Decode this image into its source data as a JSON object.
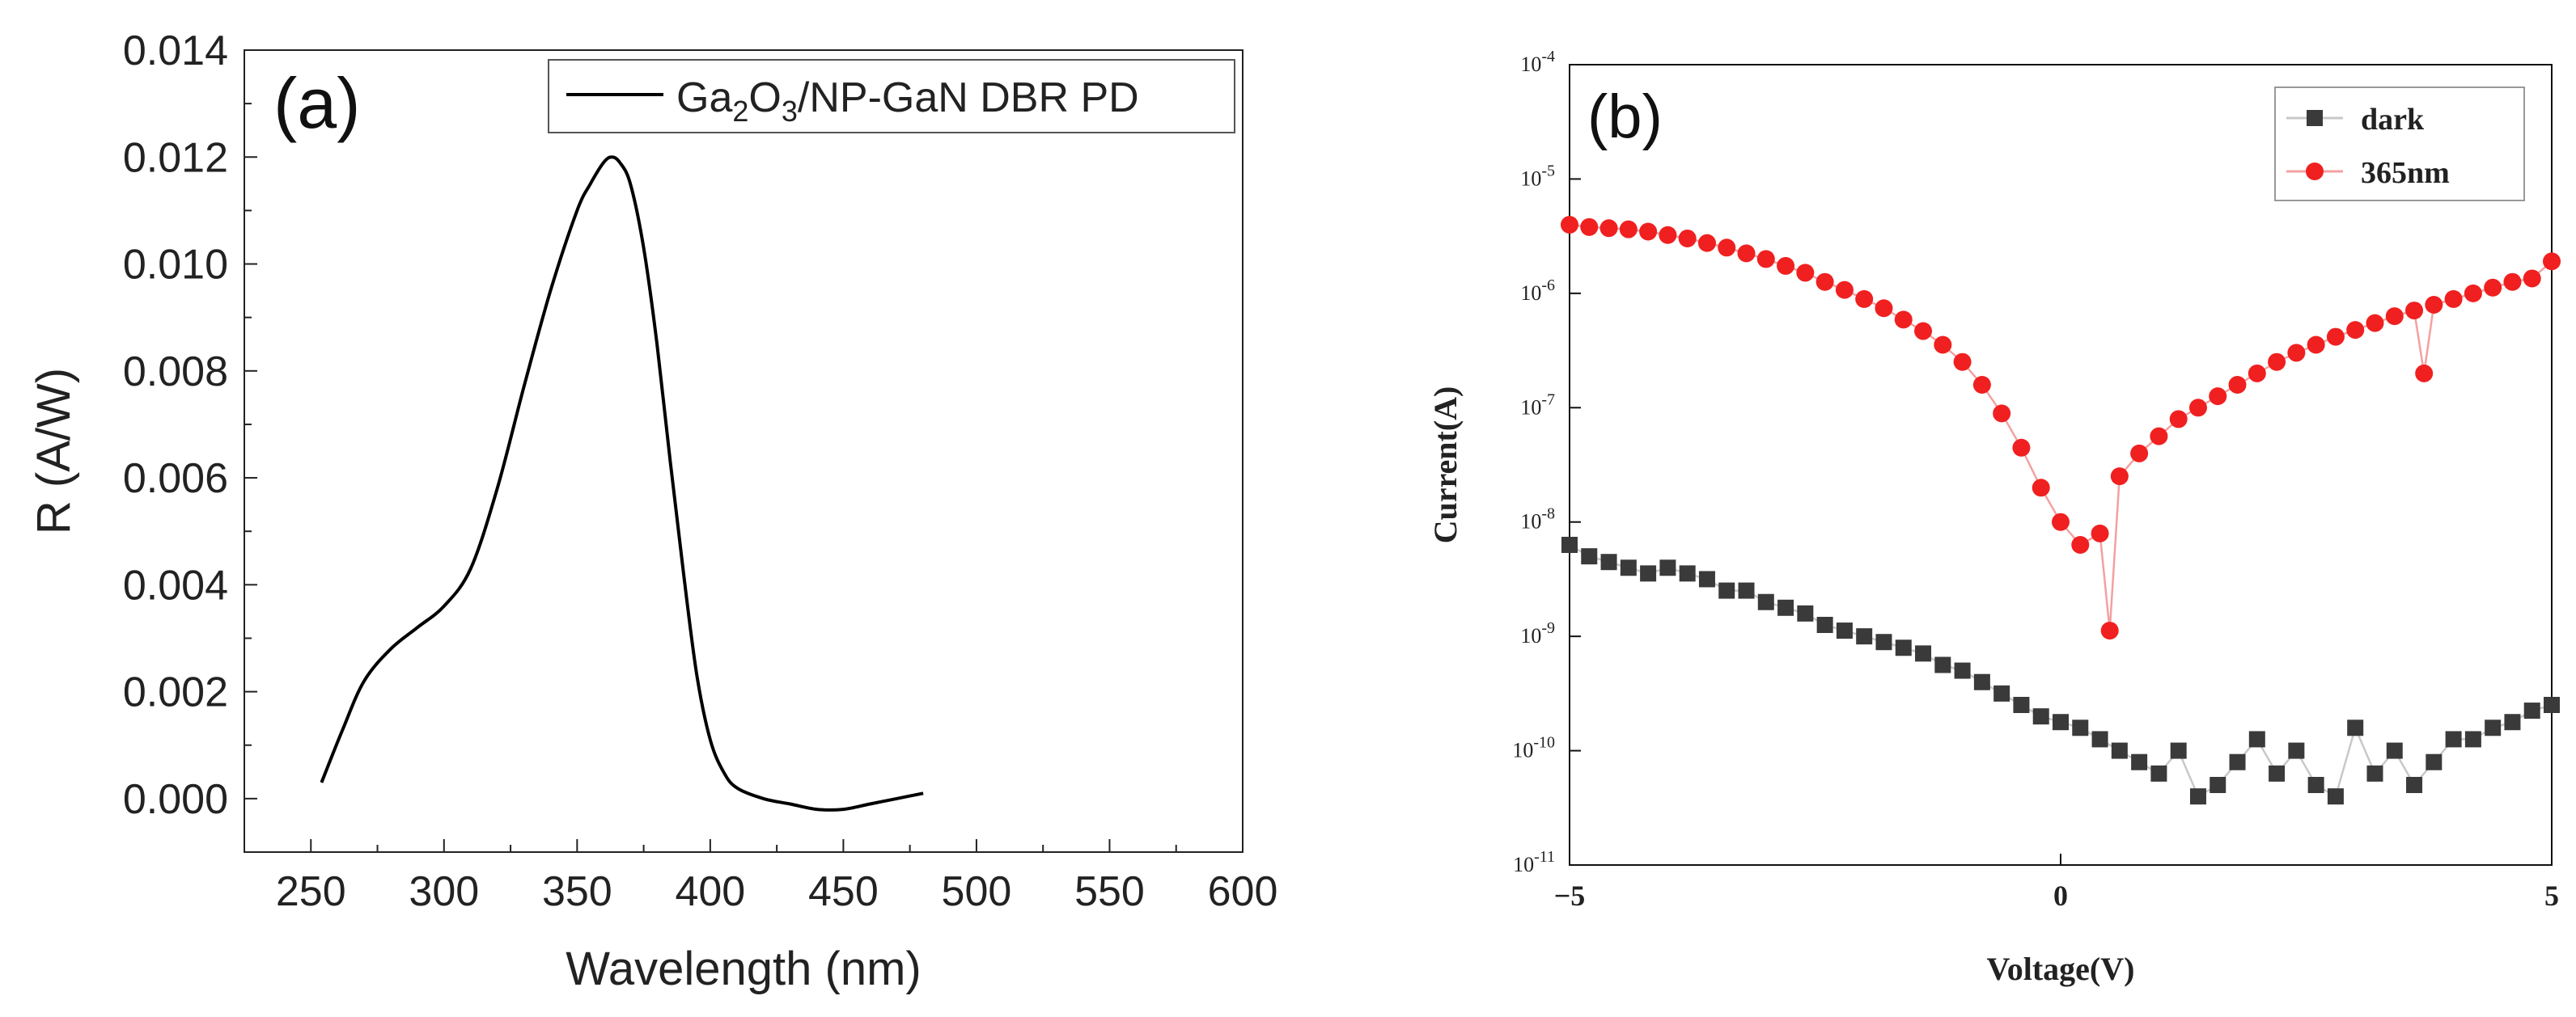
{
  "chart_data": [
    {
      "panel": "(a)",
      "type": "line",
      "xlabel": "Wavelength (nm)",
      "ylabel": "R (A/W)",
      "xlim": [
        225,
        600
      ],
      "ylim": [
        -0.001,
        0.014
      ],
      "xticks": [
        250,
        300,
        350,
        400,
        450,
        500,
        550,
        600
      ],
      "yticks": [
        0.0,
        0.002,
        0.004,
        0.006,
        0.008,
        0.01,
        0.012,
        0.014
      ],
      "ytick_labels": [
        "0.000",
        "0.002",
        "0.004",
        "0.006",
        "0.008",
        "0.010",
        "0.012",
        "0.014"
      ],
      "legend": {
        "position": "top-right",
        "label_parts": [
          "Ga",
          "2",
          "O",
          "3",
          "/NP-GaN DBR PD"
        ]
      },
      "series": [
        {
          "name": "Ga2O3/NP-GaN DBR PD",
          "color": "#000000",
          "x": [
            254,
            262,
            270,
            280,
            290,
            300,
            310,
            320,
            330,
            340,
            350,
            355,
            360,
            363,
            366,
            370,
            375,
            380,
            385,
            390,
            395,
            400,
            405,
            410,
            420,
            430,
            440,
            450,
            460,
            470,
            480
          ],
          "y": [
            0.0003,
            0.0013,
            0.0022,
            0.0028,
            0.0032,
            0.0036,
            0.0043,
            0.0058,
            0.0077,
            0.0095,
            0.011,
            0.0115,
            0.0119,
            0.012,
            0.0119,
            0.0115,
            0.0103,
            0.0085,
            0.0063,
            0.0042,
            0.0023,
            0.0011,
            0.0005,
            0.0002,
            0.0,
            -0.0001,
            -0.0002,
            -0.0002,
            -0.0001,
            0.0,
            0.0001
          ]
        }
      ]
    },
    {
      "panel": "(b)",
      "type": "scatter",
      "xlabel": "Voltage(V)",
      "ylabel": "Current(A)",
      "xlim": [
        -5,
        5
      ],
      "ylim_exp": [
        -11,
        -4
      ],
      "yscale": "log",
      "xticks": [
        -5,
        0,
        5
      ],
      "xtick_labels": [
        "−5",
        "0",
        "5"
      ],
      "ytick_exponents": [
        -4,
        -5,
        -6,
        -7,
        -8,
        -9,
        -10,
        -11
      ],
      "ytick_base": "10",
      "legend": {
        "position": "top-right"
      },
      "series": [
        {
          "name": "dark",
          "marker": "square",
          "color": "#3a3a3a",
          "line_color": "#c8c8c8",
          "x": [
            -5.0,
            -4.8,
            -4.6,
            -4.4,
            -4.2,
            -4.0,
            -3.8,
            -3.6,
            -3.4,
            -3.2,
            -3.0,
            -2.8,
            -2.6,
            -2.4,
            -2.2,
            -2.0,
            -1.8,
            -1.6,
            -1.4,
            -1.2,
            -1.0,
            -0.8,
            -0.6,
            -0.4,
            -0.2,
            0.0,
            0.2,
            0.4,
            0.6,
            0.8,
            1.0,
            1.2,
            1.4,
            1.6,
            1.8,
            2.0,
            2.2,
            2.4,
            2.6,
            2.8,
            3.0,
            3.2,
            3.4,
            3.6,
            3.8,
            4.0,
            4.2,
            4.4,
            4.6,
            4.8,
            5.0
          ],
          "y_exp": [
            -8.2,
            -8.3,
            -8.35,
            -8.4,
            -8.45,
            -8.4,
            -8.45,
            -8.5,
            -8.6,
            -8.6,
            -8.7,
            -8.75,
            -8.8,
            -8.9,
            -8.95,
            -9.0,
            -9.05,
            -9.1,
            -9.15,
            -9.25,
            -9.3,
            -9.4,
            -9.5,
            -9.6,
            -9.7,
            -9.75,
            -9.8,
            -9.9,
            -10.0,
            -10.1,
            -10.2,
            -10.0,
            -10.4,
            -10.3,
            -10.1,
            -9.9,
            -10.2,
            -10.0,
            -10.3,
            -10.4,
            -9.8,
            -10.2,
            -10.0,
            -10.3,
            -10.1,
            -9.9,
            -9.9,
            -9.8,
            -9.75,
            -9.65,
            -9.6
          ]
        },
        {
          "name": "365nm",
          "marker": "circle",
          "color": "#f02020",
          "line_color": "#f4a0a0",
          "x": [
            -5.0,
            -4.8,
            -4.6,
            -4.4,
            -4.2,
            -4.0,
            -3.8,
            -3.6,
            -3.4,
            -3.2,
            -3.0,
            -2.8,
            -2.6,
            -2.4,
            -2.2,
            -2.0,
            -1.8,
            -1.6,
            -1.4,
            -1.2,
            -1.0,
            -0.8,
            -0.6,
            -0.4,
            -0.2,
            0.0,
            0.2,
            0.4,
            0.5,
            0.6,
            0.8,
            1.0,
            1.2,
            1.4,
            1.6,
            1.8,
            2.0,
            2.2,
            2.4,
            2.6,
            2.8,
            3.0,
            3.2,
            3.4,
            3.6,
            3.7,
            3.8,
            4.0,
            4.2,
            4.4,
            4.6,
            4.8,
            5.0
          ],
          "y_exp": [
            -5.4,
            -5.42,
            -5.43,
            -5.44,
            -5.46,
            -5.49,
            -5.52,
            -5.56,
            -5.6,
            -5.65,
            -5.7,
            -5.76,
            -5.82,
            -5.9,
            -5.97,
            -6.05,
            -6.13,
            -6.23,
            -6.33,
            -6.45,
            -6.6,
            -6.8,
            -7.05,
            -7.35,
            -7.7,
            -8.0,
            -8.2,
            -8.1,
            -8.95,
            -7.6,
            -7.4,
            -7.25,
            -7.1,
            -7.0,
            -6.9,
            -6.8,
            -6.7,
            -6.6,
            -6.52,
            -6.45,
            -6.38,
            -6.32,
            -6.26,
            -6.2,
            -6.15,
            -6.7,
            -6.1,
            -6.05,
            -6.0,
            -5.95,
            -5.9,
            -5.87,
            -5.72
          ]
        }
      ]
    }
  ]
}
